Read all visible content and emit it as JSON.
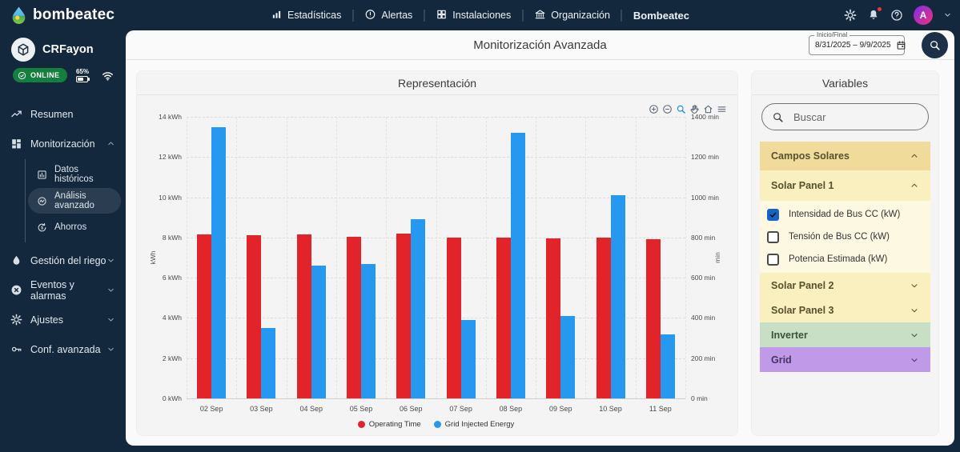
{
  "colors": {
    "navy": "#13283d",
    "online_green": "#15803d",
    "bar_red": "#e2242a",
    "bar_blue": "#2798f0",
    "checkbox_blue": "#1464c8",
    "toolbar_active_blue": "#1e88e5"
  },
  "topbar": {
    "brand": "bombeatec",
    "nav": [
      {
        "name": "estadisticas",
        "icon": "bars-icon",
        "label": "Estadísticas"
      },
      {
        "name": "alertas",
        "icon": "alert-circle-icon",
        "label": "Alertas"
      },
      {
        "name": "instalaciones",
        "icon": "grid-icon",
        "label": "Instalaciones"
      },
      {
        "name": "organizacion",
        "icon": "bank-icon",
        "label": "Organización"
      },
      {
        "name": "bombeatec",
        "icon": null,
        "label": "Bombeatec",
        "bold": true
      }
    ],
    "right_icons": [
      {
        "name": "gear",
        "icon": "gear-icon",
        "badge": false
      },
      {
        "name": "bell",
        "icon": "bell-icon",
        "badge": true
      },
      {
        "name": "help",
        "icon": "help-icon",
        "badge": false
      }
    ],
    "avatar_letter": "A"
  },
  "sidebar": {
    "user": "CRFayon",
    "status": "ONLINE",
    "battery": "65%",
    "menu": [
      {
        "name": "resumen",
        "icon": "trend-icon",
        "label": "Resumen"
      },
      {
        "name": "monitorizacion",
        "icon": "dashboard-icon",
        "label": "Monitorización",
        "chevron": "up",
        "children": [
          {
            "name": "datos-historicos",
            "icon": "chart-box-icon",
            "label": "Datos históricos"
          },
          {
            "name": "analisis-avanzado",
            "icon": "insights-icon",
            "label": "Análisis avanzado",
            "active": true
          },
          {
            "name": "ahorros",
            "icon": "savings-icon",
            "label": "Ahorros"
          }
        ]
      },
      {
        "name": "gestion-del-riego",
        "icon": "droplet-icon",
        "label": "Gestión del riego",
        "chevron": "down"
      },
      {
        "name": "eventos-y-alarmas",
        "icon": "x-circle-icon",
        "label": "Eventos y alarmas",
        "chevron": "down"
      },
      {
        "name": "ajustes",
        "icon": "gear-icon",
        "label": "Ajustes",
        "chevron": "down"
      },
      {
        "name": "conf-avanzada",
        "icon": "key-icon",
        "label": "Conf. avanzada",
        "chevron": "down"
      }
    ]
  },
  "header": {
    "title": "Monitorización Avanzada",
    "date_label": "Inicio/Final",
    "date_value": "8/31/2025 – 9/9/2025"
  },
  "chart_panel": {
    "title": "Representación",
    "toolbar": [
      {
        "name": "zoom-in",
        "icon": "zoom-in-icon",
        "active": false
      },
      {
        "name": "zoom-out",
        "icon": "zoom-out-icon",
        "active": false
      },
      {
        "name": "box-zoom",
        "icon": "magnifier-icon",
        "active": true
      },
      {
        "name": "pan",
        "icon": "hand-icon",
        "active": false
      },
      {
        "name": "reset-home",
        "icon": "home-icon",
        "active": false
      },
      {
        "name": "menu",
        "icon": "hamburger-icon",
        "active": false
      }
    ]
  },
  "chart_data": {
    "type": "bar",
    "title": "Representación",
    "categories": [
      "02 Sep",
      "03 Sep",
      "04 Sep",
      "05 Sep",
      "06 Sep",
      "07 Sep",
      "08 Sep",
      "09 Sep",
      "10 Sep",
      "11 Sep"
    ],
    "series": [
      {
        "name": "Operating Time",
        "color": "#e2242a",
        "axis": "right",
        "unit": "min",
        "values": [
          815,
          810,
          815,
          805,
          820,
          800,
          800,
          795,
          800,
          790
        ]
      },
      {
        "name": "Grid Injected Energy",
        "color": "#2798f0",
        "axis": "left",
        "unit": "kWh",
        "values": [
          13.5,
          3.5,
          6.6,
          6.7,
          8.9,
          3.9,
          13.2,
          4.1,
          10.1,
          3.2
        ]
      }
    ],
    "y_left": {
      "label": "kWh",
      "min": 0,
      "max": 14,
      "ticks": [
        "0 kWh",
        "2 kWh",
        "4 kWh",
        "6 kWh",
        "8 kWh",
        "10 kWh",
        "12 kWh",
        "14 kWh"
      ]
    },
    "y_right": {
      "label": "min",
      "min": 0,
      "max": 1400,
      "ticks": [
        "0 min",
        "200 min",
        "400 min",
        "600 min",
        "800 min",
        "1000 min",
        "1200 min",
        "1400 min"
      ]
    },
    "grid": true,
    "legend_position": "bottom"
  },
  "variables_panel": {
    "title": "Variables",
    "search_placeholder": "Buscar",
    "groups": [
      {
        "name": "campos-solares",
        "label": "Campos Solares",
        "expanded": true,
        "bg": "#f0db9b",
        "fg": "#56512f"
      },
      {
        "name": "solar-panel-1",
        "label": "Solar Panel 1",
        "expanded": true,
        "bg": "#faefbe",
        "fg": "#56512f",
        "items_bg": "#fdf8e2",
        "items": [
          {
            "name": "intensidad-de-bus-cc",
            "label": "Intensidad de Bus CC (kW)",
            "checked": true
          },
          {
            "name": "tension-de-bus-cc",
            "label": "Tensión de Bus CC (kW)",
            "checked": false
          },
          {
            "name": "potencia-estimada",
            "label": "Potencia Estimada (kW)",
            "checked": false
          }
        ]
      },
      {
        "name": "solar-panel-2",
        "label": "Solar Panel 2",
        "expanded": false,
        "bg": "#faefbe",
        "fg": "#56512f"
      },
      {
        "name": "solar-panel-3",
        "label": "Solar Panel 3",
        "expanded": false,
        "bg": "#faefbe",
        "fg": "#56512f"
      },
      {
        "name": "inverter",
        "label": "Inverter",
        "expanded": false,
        "bg": "#c9dfc5",
        "fg": "#39523c"
      },
      {
        "name": "grid",
        "label": "Grid",
        "expanded": false,
        "bg": "#c09ae9",
        "fg": "#46355e"
      }
    ]
  }
}
